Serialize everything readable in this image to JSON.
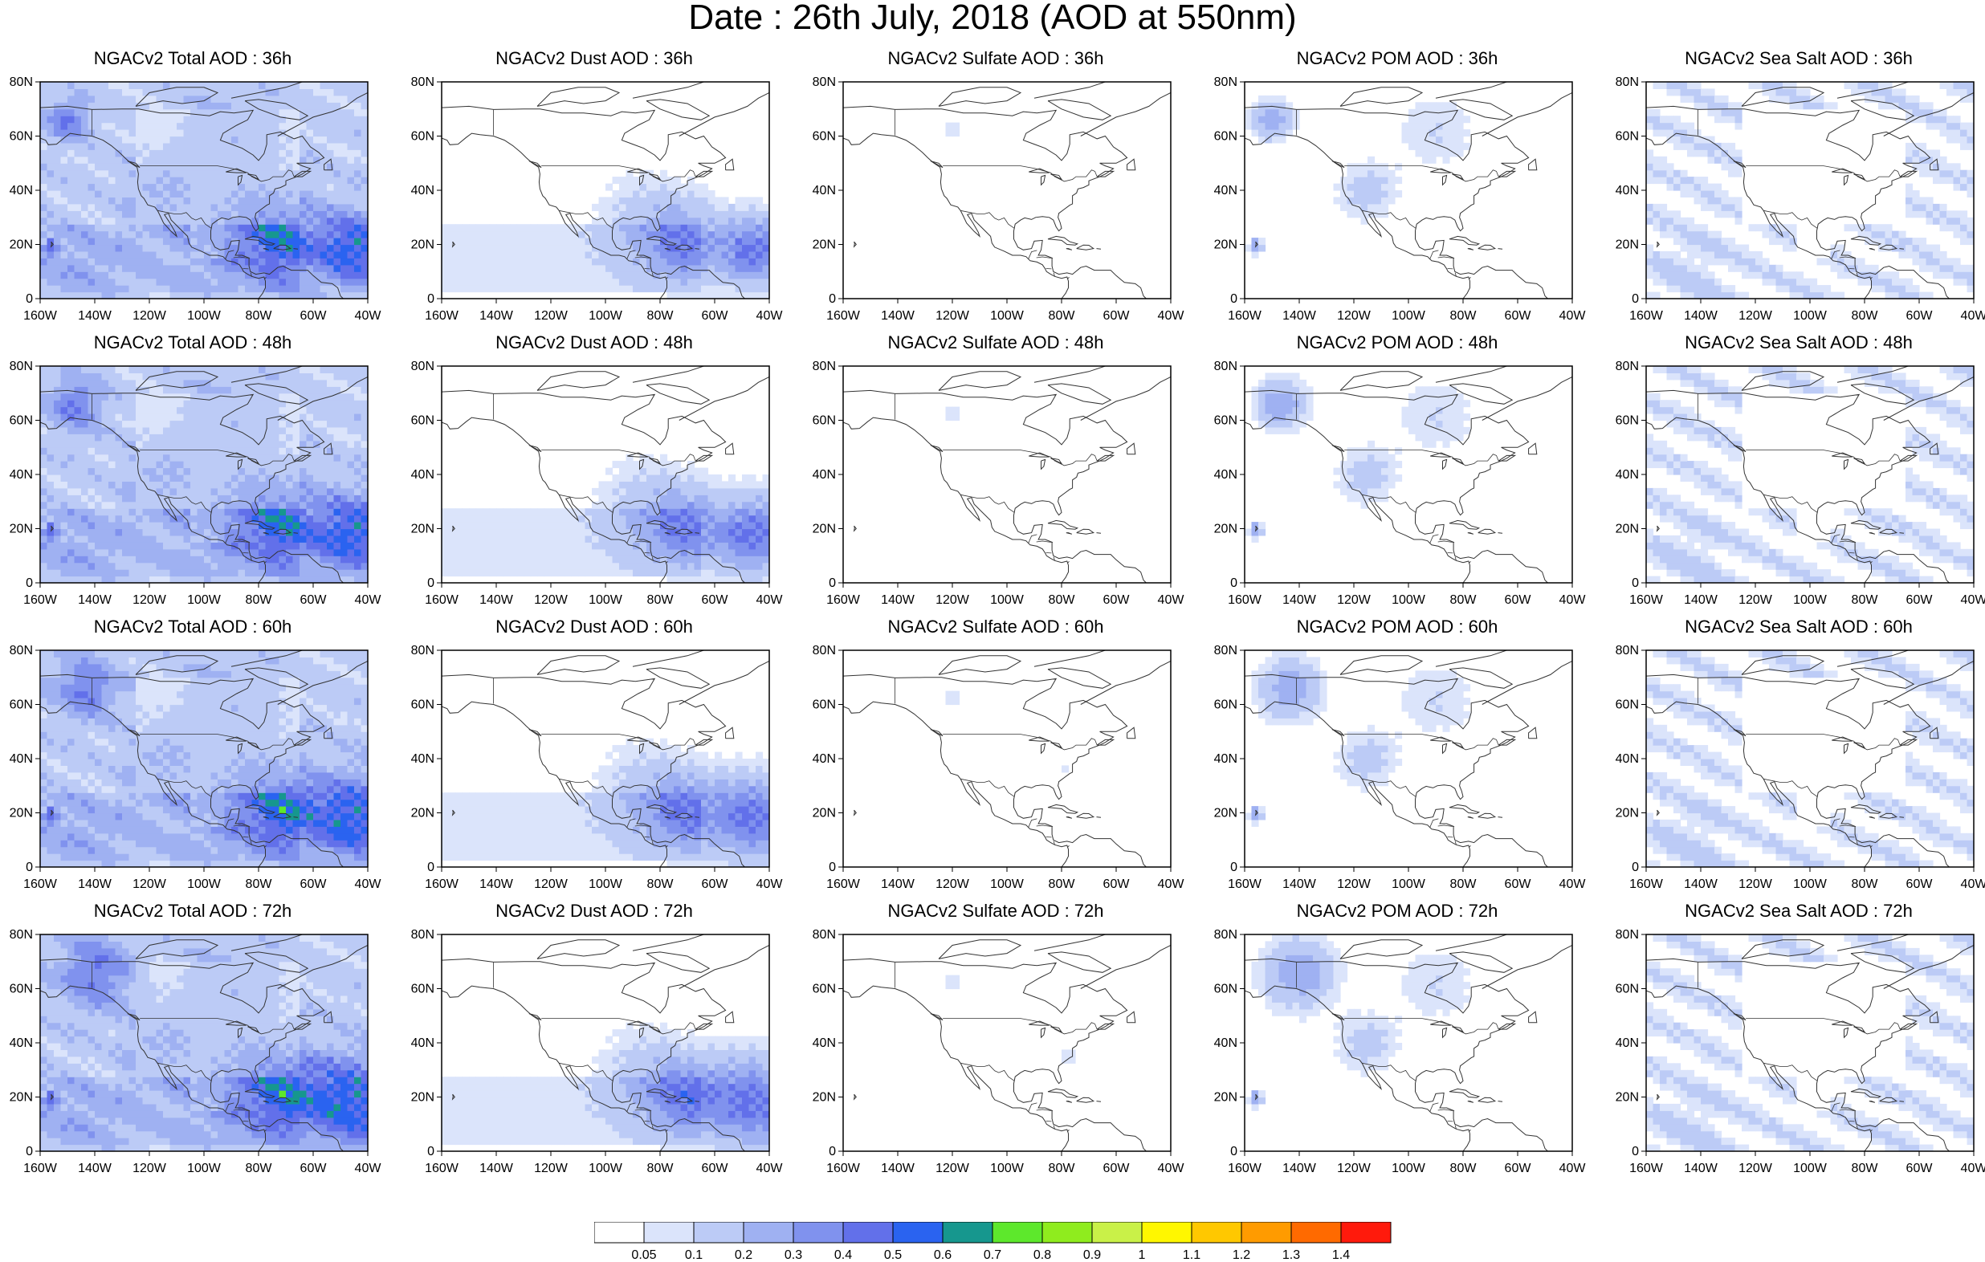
{
  "title": "Date : 26th July, 2018 (AOD at 550nm)",
  "axes": {
    "x_ticks": [
      "160W",
      "140W",
      "120W",
      "100W",
      "80W",
      "60W",
      "40W"
    ],
    "y_ticks": [
      "0",
      "20N",
      "40N",
      "60N",
      "80N"
    ],
    "lon_range": [
      -160,
      -40
    ],
    "lat_range": [
      0,
      80
    ]
  },
  "panels": [
    {
      "title": "NGACv2 Total AOD : 36h",
      "aerosol": "total",
      "hour": 36
    },
    {
      "title": "NGACv2 Dust AOD : 36h",
      "aerosol": "dust",
      "hour": 36
    },
    {
      "title": "NGACv2 Sulfate AOD : 36h",
      "aerosol": "sulfate",
      "hour": 36
    },
    {
      "title": "NGACv2 POM AOD : 36h",
      "aerosol": "pom",
      "hour": 36
    },
    {
      "title": "NGACv2 Sea Salt AOD : 36h",
      "aerosol": "seasalt",
      "hour": 36
    },
    {
      "title": "NGACv2 Total AOD : 48h",
      "aerosol": "total",
      "hour": 48
    },
    {
      "title": "NGACv2 Dust AOD : 48h",
      "aerosol": "dust",
      "hour": 48
    },
    {
      "title": "NGACv2 Sulfate AOD : 48h",
      "aerosol": "sulfate",
      "hour": 48
    },
    {
      "title": "NGACv2 POM AOD : 48h",
      "aerosol": "pom",
      "hour": 48
    },
    {
      "title": "NGACv2 Sea Salt AOD : 48h",
      "aerosol": "seasalt",
      "hour": 48
    },
    {
      "title": "NGACv2 Total AOD : 60h",
      "aerosol": "total",
      "hour": 60
    },
    {
      "title": "NGACv2 Dust AOD : 60h",
      "aerosol": "dust",
      "hour": 60
    },
    {
      "title": "NGACv2 Sulfate AOD : 60h",
      "aerosol": "sulfate",
      "hour": 60
    },
    {
      "title": "NGACv2 POM AOD : 60h",
      "aerosol": "pom",
      "hour": 60
    },
    {
      "title": "NGACv2 Sea Salt AOD : 60h",
      "aerosol": "seasalt",
      "hour": 60
    },
    {
      "title": "NGACv2 Total AOD : 72h",
      "aerosol": "total",
      "hour": 72
    },
    {
      "title": "NGACv2 Dust AOD : 72h",
      "aerosol": "dust",
      "hour": 72
    },
    {
      "title": "NGACv2 Sulfate AOD : 72h",
      "aerosol": "sulfate",
      "hour": 72
    },
    {
      "title": "NGACv2 POM AOD : 72h",
      "aerosol": "pom",
      "hour": 72
    },
    {
      "title": "NGACv2 Sea Salt  AOD : 72h",
      "aerosol": "seasalt",
      "hour": 72
    }
  ],
  "colorbar": {
    "labels": [
      "0.05",
      "0.1",
      "0.2",
      "0.3",
      "0.4",
      "0.5",
      "0.6",
      "0.7",
      "0.8",
      "0.9",
      "1",
      "1.1",
      "1.2",
      "1.3",
      "1.4"
    ],
    "colors": [
      "#ffffff",
      "#dbe4fb",
      "#bccbf6",
      "#9fb1f2",
      "#8092ee",
      "#6270ea",
      "#2a63f0",
      "#16978e",
      "#5de82c",
      "#8fec1e",
      "#c9f148",
      "#fff700",
      "#ffc800",
      "#ff9b00",
      "#ff6a00",
      "#ff1a0c"
    ]
  }
}
